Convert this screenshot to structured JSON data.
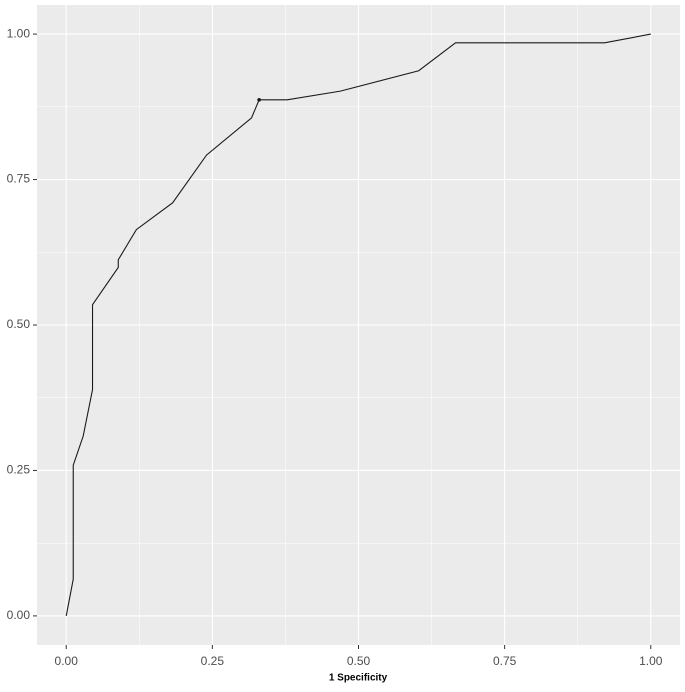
{
  "chart_data": {
    "type": "line",
    "xlabel": "1 Specificity",
    "x": [
      0,
      0.012,
      0.012,
      0.029,
      0.045,
      0.045,
      0.089,
      0.089,
      0.12,
      0.182,
      0.24,
      0.317,
      0.33,
      0.378,
      0.469,
      0.603,
      0.666,
      0.921,
      1
    ],
    "values": [
      0,
      0.063,
      0.259,
      0.309,
      0.389,
      0.535,
      0.599,
      0.612,
      0.664,
      0.71,
      0.792,
      0.856,
      0.887,
      0.887,
      0.902,
      0.937,
      0.985,
      0.985,
      1
    ],
    "color": "#1a1a1a",
    "point": {
      "x": 0.33,
      "y": 0.887
    },
    "xlim": [
      -0.05,
      1.05
    ],
    "ylim": [
      -0.05,
      1.05
    ],
    "xticks": [
      {
        "value": 0,
        "label": "0.00"
      },
      {
        "value": 0.25,
        "label": "0.25"
      },
      {
        "value": 0.5,
        "label": "0.50"
      },
      {
        "value": 0.75,
        "label": "0.75"
      },
      {
        "value": 1,
        "label": "1.00"
      }
    ],
    "yticks": [
      {
        "value": 0,
        "label": "0.00"
      },
      {
        "value": 0.25,
        "label": "0.25"
      },
      {
        "value": 0.5,
        "label": "0.50"
      },
      {
        "value": 0.75,
        "label": "0.75"
      },
      {
        "value": 1,
        "label": "1.00"
      }
    ],
    "minor_ticks": [
      0.125,
      0.375,
      0.625,
      0.875
    ],
    "grid": true
  }
}
